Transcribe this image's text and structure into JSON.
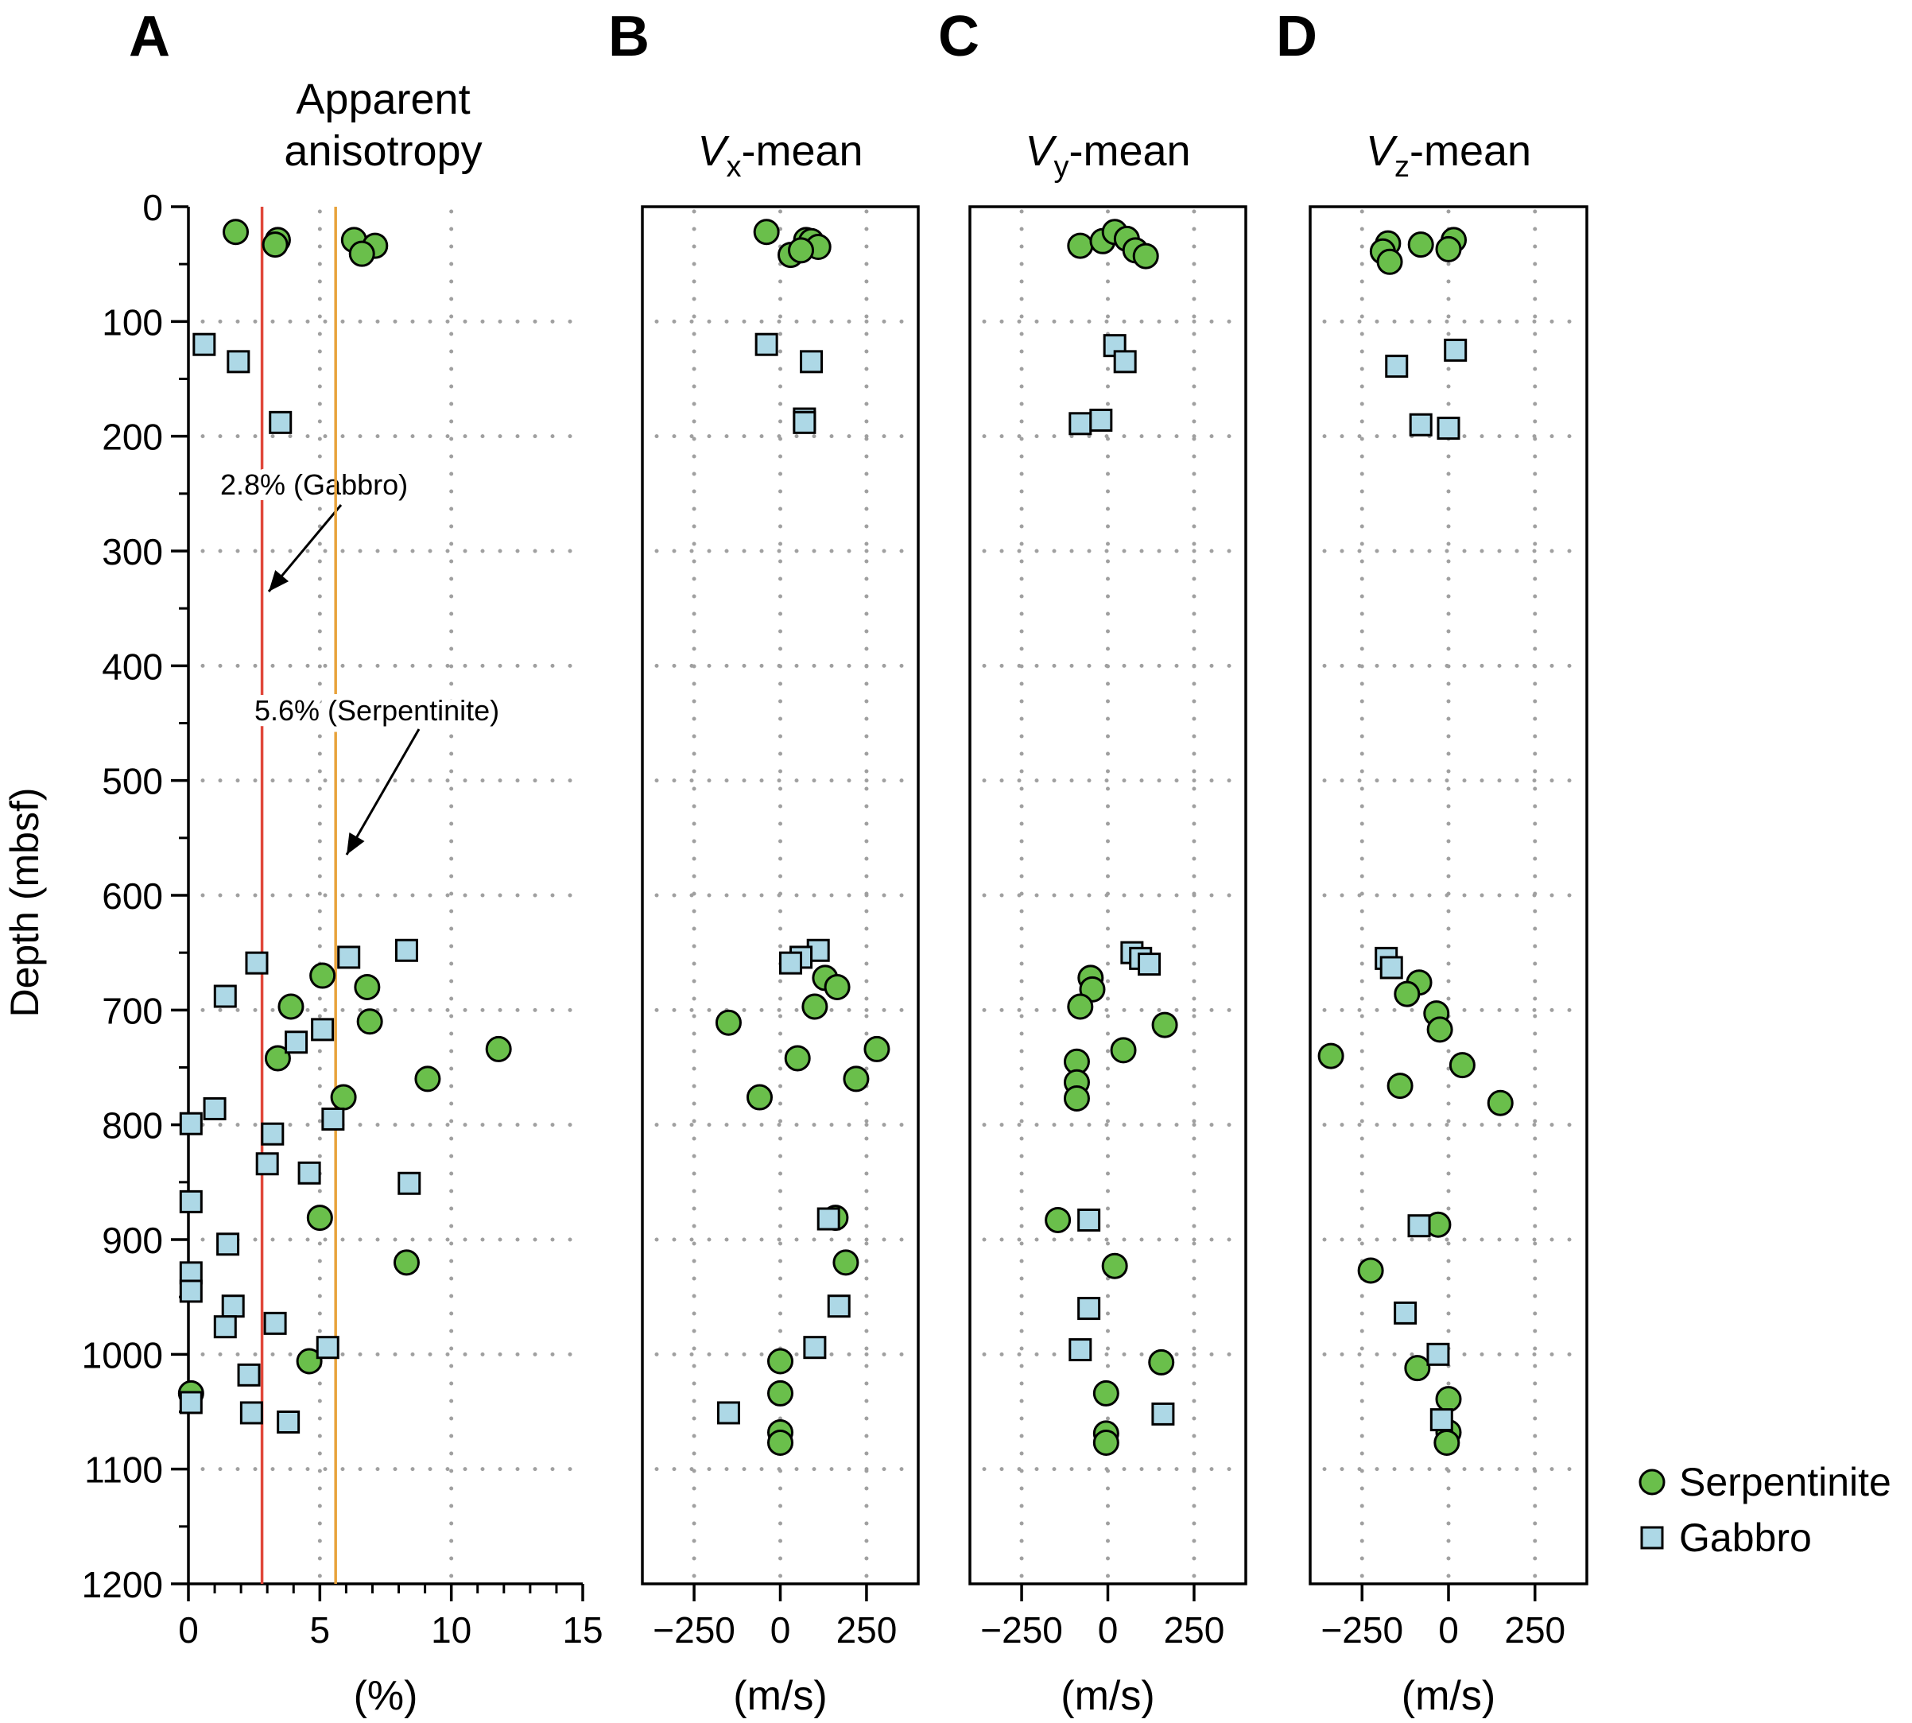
{
  "colors": {
    "serpentinite": "#6abf4b",
    "gabbro": "#add8e6",
    "gabbro_line": "#e0473a",
    "serpentinite_line": "#e8a33c"
  },
  "legend": {
    "placement": "bottom-right",
    "items": [
      {
        "label": "Serpentinite",
        "marker": "circle"
      },
      {
        "label": "Gabbro",
        "marker": "square"
      }
    ]
  },
  "ylabel": "Depth (mbsf)",
  "chart_data": [
    {
      "type": "scatter",
      "panel": "A",
      "title": "Apparent anisotropy",
      "xlabel": "(%)",
      "xlim": [
        0,
        15
      ],
      "xticks": [
        0,
        5,
        10,
        15
      ],
      "ylim": [
        1200,
        0
      ],
      "yticks": [
        0,
        100,
        200,
        300,
        400,
        500,
        600,
        700,
        800,
        900,
        1000,
        1100,
        1200
      ],
      "grid": true,
      "reference_lines": [
        {
          "x": 2.8,
          "label": "2.8% (Gabbro)"
        },
        {
          "x": 5.6,
          "label": "5.6% (Serpentinite)"
        }
      ],
      "series": [
        {
          "name": "Serpentinite",
          "points": [
            [
              1.8,
              22
            ],
            [
              3.4,
              29
            ],
            [
              3.3,
              33
            ],
            [
              6.3,
              29
            ],
            [
              7.1,
              34
            ],
            [
              6.6,
              41
            ],
            [
              5.1,
              670
            ],
            [
              6.8,
              680
            ],
            [
              3.9,
              697
            ],
            [
              6.9,
              710
            ],
            [
              11.8,
              734
            ],
            [
              3.4,
              742
            ],
            [
              9.1,
              760
            ],
            [
              5.9,
              776
            ],
            [
              5.0,
              881
            ],
            [
              8.3,
              920
            ],
            [
              4.6,
              1006
            ],
            [
              0.1,
              1034
            ]
          ]
        },
        {
          "name": "Gabbro",
          "points": [
            [
              0.6,
              120
            ],
            [
              1.9,
              135
            ],
            [
              3.5,
              188
            ],
            [
              8.3,
              648
            ],
            [
              6.1,
              654
            ],
            [
              2.6,
              659
            ],
            [
              1.4,
              688
            ],
            [
              5.1,
              717
            ],
            [
              4.1,
              728
            ],
            [
              5.5,
              795
            ],
            [
              0.1,
              799
            ],
            [
              1.0,
              786
            ],
            [
              3.2,
              808
            ],
            [
              3.0,
              834
            ],
            [
              4.6,
              842
            ],
            [
              8.4,
              851
            ],
            [
              0.1,
              867
            ],
            [
              1.5,
              904
            ],
            [
              0.1,
              929
            ],
            [
              0.1,
              945
            ],
            [
              1.7,
              958
            ],
            [
              1.4,
              976
            ],
            [
              3.3,
              973
            ],
            [
              5.3,
              994
            ],
            [
              2.3,
              1018
            ],
            [
              0.1,
              1042
            ],
            [
              2.4,
              1051
            ],
            [
              3.8,
              1059
            ]
          ]
        }
      ]
    },
    {
      "type": "scatter",
      "panel": "B",
      "title": "-mean",
      "title_symbol": "V",
      "title_subscript": "x",
      "xlabel": "(m/s)",
      "xlim": [
        -400,
        400
      ],
      "xticks": [
        -250,
        0,
        250
      ],
      "ylim": [
        1200,
        0
      ],
      "grid": true,
      "series": [
        {
          "name": "Serpentinite",
          "points": [
            [
              -40,
              22
            ],
            [
              75,
              29
            ],
            [
              90,
              30
            ],
            [
              110,
              35
            ],
            [
              30,
              42
            ],
            [
              60,
              38
            ],
            [
              130,
              672
            ],
            [
              165,
              680
            ],
            [
              100,
              697
            ],
            [
              -150,
              711
            ],
            [
              280,
              734
            ],
            [
              50,
              742
            ],
            [
              220,
              760
            ],
            [
              -60,
              776
            ],
            [
              160,
              881
            ],
            [
              190,
              920
            ],
            [
              0,
              1006
            ],
            [
              0,
              1034
            ],
            [
              0,
              1068
            ],
            [
              0,
              1077
            ]
          ]
        },
        {
          "name": "Gabbro",
          "points": [
            [
              -40,
              120
            ],
            [
              90,
              135
            ],
            [
              70,
              185
            ],
            [
              70,
              188
            ],
            [
              110,
              648
            ],
            [
              60,
              654
            ],
            [
              30,
              659
            ],
            [
              170,
              958
            ],
            [
              100,
              994
            ],
            [
              -150,
              1051
            ],
            [
              140,
              882
            ]
          ]
        }
      ]
    },
    {
      "type": "scatter",
      "panel": "C",
      "title": "-mean",
      "title_symbol": "V",
      "title_subscript": "y",
      "xlabel": "(m/s)",
      "xlim": [
        -400,
        400
      ],
      "xticks": [
        -250,
        0,
        250
      ],
      "ylim": [
        1200,
        0
      ],
      "grid": true,
      "series": [
        {
          "name": "Serpentinite",
          "points": [
            [
              -80,
              34
            ],
            [
              -15,
              30
            ],
            [
              20,
              22
            ],
            [
              55,
              28
            ],
            [
              80,
              38
            ],
            [
              110,
              43
            ],
            [
              -50,
              672
            ],
            [
              -45,
              682
            ],
            [
              -80,
              697
            ],
            [
              165,
              713
            ],
            [
              45,
              735
            ],
            [
              -90,
              745
            ],
            [
              -90,
              763
            ],
            [
              -90,
              777
            ],
            [
              -145,
              883
            ],
            [
              20,
              923
            ],
            [
              -5,
              1034
            ],
            [
              -5,
              1069
            ],
            [
              -5,
              1077
            ],
            [
              155,
              1007
            ]
          ]
        },
        {
          "name": "Gabbro",
          "points": [
            [
              20,
              121
            ],
            [
              50,
              135
            ],
            [
              -80,
              189
            ],
            [
              -20,
              186
            ],
            [
              70,
              650
            ],
            [
              95,
              655
            ],
            [
              120,
              660
            ],
            [
              -55,
              883
            ],
            [
              -55,
              960
            ],
            [
              -80,
              996
            ],
            [
              160,
              1052
            ]
          ]
        }
      ]
    },
    {
      "type": "scatter",
      "panel": "D",
      "title": "-mean",
      "title_symbol": "V",
      "title_subscript": "z",
      "xlabel": "(m/s)",
      "xlim": [
        -400,
        400
      ],
      "xticks": [
        -250,
        0,
        250
      ],
      "ylim": [
        1200,
        0
      ],
      "grid": true,
      "series": [
        {
          "name": "Serpentinite",
          "points": [
            [
              -175,
              32
            ],
            [
              -80,
              33
            ],
            [
              15,
              29
            ],
            [
              0,
              37
            ],
            [
              -190,
              39
            ],
            [
              -170,
              48
            ],
            [
              -85,
              676
            ],
            [
              -120,
              686
            ],
            [
              -35,
              703
            ],
            [
              -25,
              717
            ],
            [
              -340,
              740
            ],
            [
              40,
              748
            ],
            [
              -140,
              766
            ],
            [
              150,
              781
            ],
            [
              -30,
              887
            ],
            [
              -225,
              927
            ],
            [
              -90,
              1012
            ],
            [
              0,
              1039
            ],
            [
              0,
              1068
            ],
            [
              -5,
              1077
            ]
          ]
        },
        {
          "name": "Gabbro",
          "points": [
            [
              20,
              125
            ],
            [
              -150,
              139
            ],
            [
              -80,
              190
            ],
            [
              0,
              193
            ],
            [
              -180,
              655
            ],
            [
              -165,
              663
            ],
            [
              -85,
              888
            ],
            [
              -125,
              964
            ],
            [
              -30,
              1000
            ],
            [
              -20,
              1057
            ]
          ]
        }
      ]
    }
  ]
}
